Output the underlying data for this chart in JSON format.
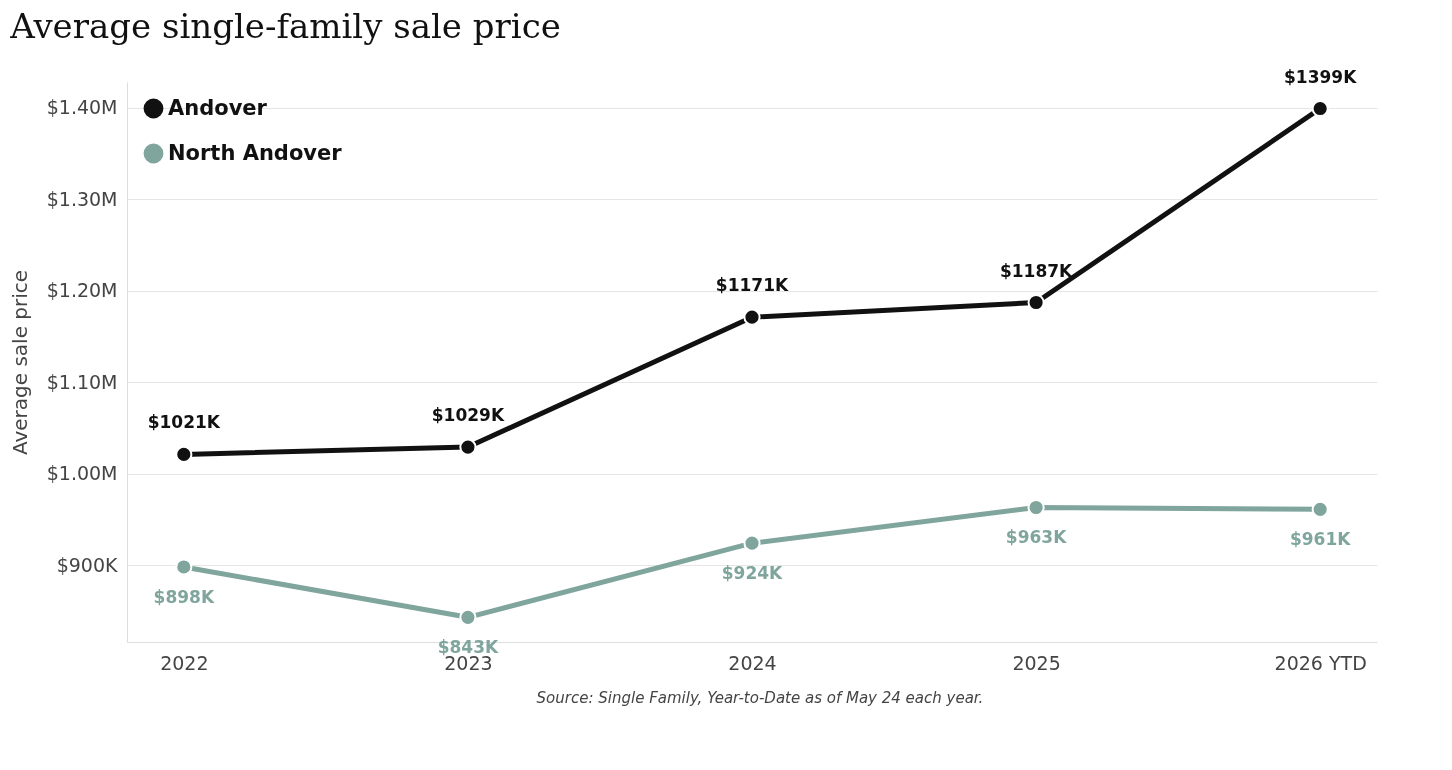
{
  "chart_data": {
    "type": "line",
    "title": "Average single-family sale price",
    "ylabel": "Average sale price",
    "categories": [
      "2022",
      "2023",
      "2024",
      "2025",
      "2026 YTD"
    ],
    "series": [
      {
        "name": "Andover",
        "color": "#111111",
        "values": [
          1021000,
          1029000,
          1171000,
          1187000,
          1399000
        ],
        "value_labels": [
          "$1021K",
          "$1029K",
          "$1171K",
          "$1187K",
          "$1399K"
        ]
      },
      {
        "name": "North Andover",
        "color": "#7fa59c",
        "values": [
          898000,
          843000,
          924000,
          963000,
          961000
        ],
        "value_labels": [
          "$898K",
          "$843K",
          "$924K",
          "$963K",
          "$961K"
        ]
      }
    ],
    "ylim": [
      816000,
      1428000
    ],
    "yticks": [
      {
        "value": 900000,
        "label": "$900K"
      },
      {
        "value": 1000000,
        "label": "$1.00M"
      },
      {
        "value": 1100000,
        "label": "$1.10M"
      },
      {
        "value": 1200000,
        "label": "$1.20M"
      },
      {
        "value": 1300000,
        "label": "$1.30M"
      },
      {
        "value": 1400000,
        "label": "$1.40M"
      }
    ],
    "grid": "y",
    "legend": "top left",
    "marker": "circle",
    "line_style": "solid",
    "annotations": [
      "Source: Single Family, Year-to-Date as of May 24 each year."
    ]
  }
}
